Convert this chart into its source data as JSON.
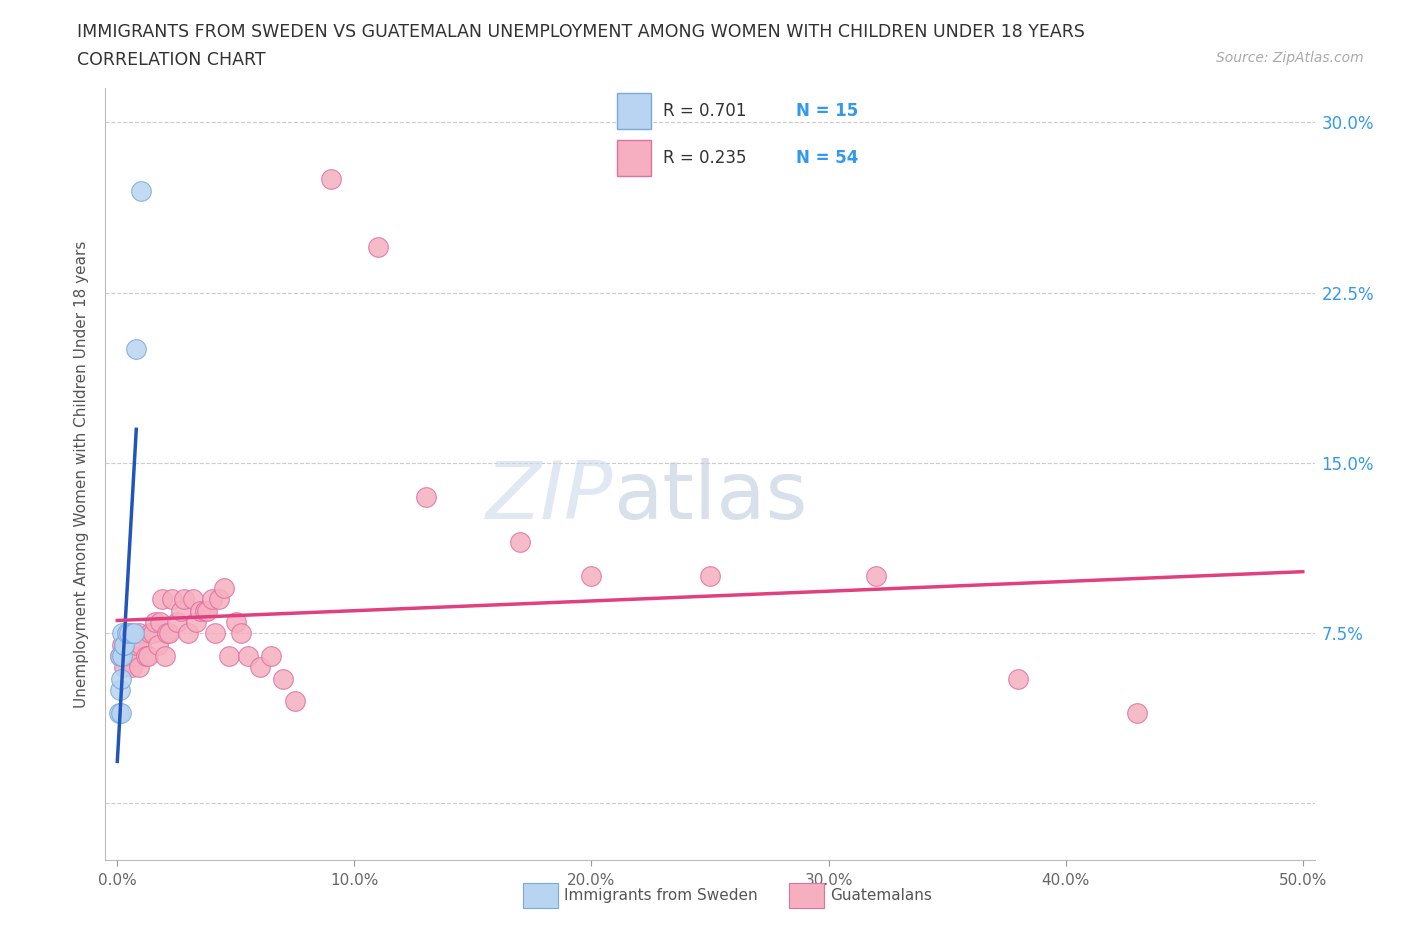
{
  "title_line1": "IMMIGRANTS FROM SWEDEN VS GUATEMALAN UNEMPLOYMENT AMONG WOMEN WITH CHILDREN UNDER 18 YEARS",
  "title_line2": "CORRELATION CHART",
  "source": "Source: ZipAtlas.com",
  "ylabel": "Unemployment Among Women with Children Under 18 years",
  "xlim": [
    -0.005,
    0.505
  ],
  "ylim": [
    -0.025,
    0.315
  ],
  "yticks": [
    0.0,
    0.075,
    0.15,
    0.225,
    0.3
  ],
  "yticklabels": [
    "",
    "7.5%",
    "15.0%",
    "22.5%",
    "30.0%"
  ],
  "xticks": [
    0.0,
    0.1,
    0.2,
    0.3,
    0.4,
    0.5
  ],
  "xticklabels": [
    "0.0%",
    "10.0%",
    "20.0%",
    "30.0%",
    "40.0%",
    "50.0%"
  ],
  "sweden_color": "#b8d4f0",
  "sweden_edge_color": "#7aaadc",
  "guatemalan_color": "#f5afc0",
  "guatemalan_edge_color": "#e070a0",
  "sweden_line_color": "#2255bb",
  "guatemalan_line_color": "#e04080",
  "watermark_zip": "ZIP",
  "watermark_atlas": "atlas",
  "watermark_color_zip": "#ccdded",
  "watermark_color_atlas": "#b8ccdc",
  "legend_r_sweden": "R = 0.701",
  "legend_n_sweden": "N = 15",
  "legend_r_guatemalan": "R = 0.235",
  "legend_n_guatemalan": "N = 54",
  "sweden_scatter_x": [
    0.0008,
    0.001,
    0.0012,
    0.0014,
    0.0015,
    0.002,
    0.002,
    0.003,
    0.003,
    0.004,
    0.005,
    0.006,
    0.007,
    0.008,
    0.01
  ],
  "sweden_scatter_y": [
    0.04,
    0.05,
    0.065,
    0.055,
    0.04,
    0.065,
    0.075,
    0.07,
    0.07,
    0.075,
    0.075,
    0.075,
    0.075,
    0.2,
    0.27
  ],
  "guatemalan_scatter_x": [
    0.001,
    0.002,
    0.003,
    0.004,
    0.005,
    0.005,
    0.006,
    0.007,
    0.008,
    0.009,
    0.009,
    0.01,
    0.012,
    0.013,
    0.014,
    0.015,
    0.016,
    0.017,
    0.018,
    0.019,
    0.02,
    0.021,
    0.022,
    0.023,
    0.025,
    0.027,
    0.028,
    0.03,
    0.032,
    0.033,
    0.035,
    0.037,
    0.038,
    0.04,
    0.041,
    0.043,
    0.045,
    0.047,
    0.05,
    0.052,
    0.055,
    0.06,
    0.065,
    0.07,
    0.075,
    0.09,
    0.11,
    0.13,
    0.17,
    0.2,
    0.25,
    0.32,
    0.38,
    0.43
  ],
  "guatemalan_scatter_y": [
    0.065,
    0.07,
    0.06,
    0.075,
    0.065,
    0.075,
    0.06,
    0.065,
    0.07,
    0.06,
    0.075,
    0.07,
    0.065,
    0.065,
    0.075,
    0.075,
    0.08,
    0.07,
    0.08,
    0.09,
    0.065,
    0.075,
    0.075,
    0.09,
    0.08,
    0.085,
    0.09,
    0.075,
    0.09,
    0.08,
    0.085,
    0.085,
    0.085,
    0.09,
    0.075,
    0.09,
    0.095,
    0.065,
    0.08,
    0.075,
    0.065,
    0.06,
    0.065,
    0.055,
    0.045,
    0.275,
    0.245,
    0.135,
    0.115,
    0.1,
    0.1,
    0.1,
    0.055,
    0.04
  ]
}
